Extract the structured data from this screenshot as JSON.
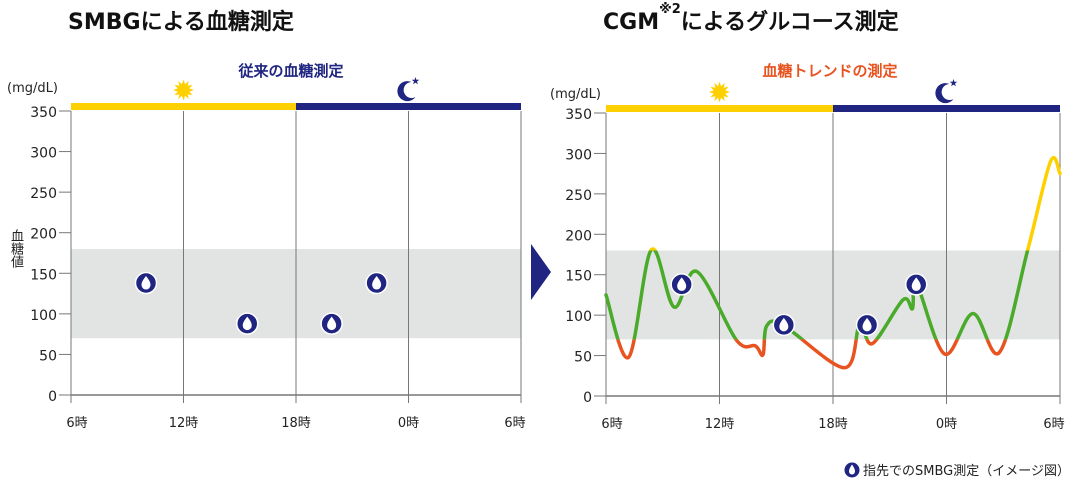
{
  "titles": {
    "left": "SMBGによる血糖測定",
    "right_main": "CGM",
    "right_sup": "※2",
    "right_rest": "によるグルコース測定"
  },
  "legend": {
    "label": "指先でのSMBG測定（イメージ図）",
    "icon": "blood-drop-icon"
  },
  "colors": {
    "navy": "#1f2580",
    "yellow": "#ffd000",
    "red": "#e8531f",
    "green": "#4aaa2a",
    "band": "#e2e3e3",
    "grid": "#777777"
  },
  "chart_data": [
    {
      "type": "scatter",
      "title": "SMBGによる血糖測定",
      "subtitle": "従来の血糖測定",
      "unit": "(mg/dL)",
      "ylabel": "血糖値",
      "ylim": [
        0,
        350
      ],
      "yticks": [
        "0",
        "50",
        "100",
        "150",
        "200",
        "250",
        "300",
        "350"
      ],
      "xlim": [
        6,
        30
      ],
      "xticks": [
        6,
        12,
        18,
        24,
        30
      ],
      "xtick_labels": [
        "6時",
        "12時",
        "18時",
        "0時",
        "6時"
      ],
      "target_range": [
        70,
        180
      ],
      "day_period": [
        6,
        18
      ],
      "night_period": [
        18,
        30
      ],
      "day_icon": "sun-icon",
      "night_icon": "moon-star-icon",
      "smbg_points": [
        [
          10.0,
          138
        ],
        [
          15.4,
          88
        ],
        [
          19.9,
          88
        ],
        [
          22.3,
          138
        ]
      ]
    },
    {
      "type": "line",
      "title": "CGM※2によるグルコース測定",
      "subtitle": "血糖トレンドの測定",
      "unit": "(mg/dL)",
      "ylabel": "",
      "ylim": [
        0,
        350
      ],
      "yticks": [
        "0",
        "50",
        "100",
        "150",
        "200",
        "250",
        "300",
        "350"
      ],
      "xlim": [
        6,
        30
      ],
      "xticks": [
        6,
        12,
        18,
        24,
        30
      ],
      "xtick_labels": [
        "6時",
        "12時",
        "18時",
        "0時",
        "6時"
      ],
      "target_range": [
        70,
        180
      ],
      "day_period": [
        6,
        18
      ],
      "night_period": [
        18,
        30
      ],
      "day_icon": "sun-icon",
      "night_icon": "moon-star-icon",
      "series": [
        {
          "name": "glucose",
          "x": [
            6.0,
            7.2,
            8.4,
            9.6,
            10.8,
            12.9,
            13.9,
            14.3,
            14.5,
            15.4,
            18.6,
            19.4,
            20.1,
            21.7,
            22.2,
            22.4,
            23.9,
            25.4,
            26.8,
            28.3,
            29.5,
            30.0
          ],
          "y": [
            125,
            48,
            181,
            110,
            154,
            69,
            62,
            51,
            87,
            87,
            35,
            87,
            65,
            119,
            108,
            140,
            52,
            102,
            54,
            181,
            290,
            275
          ]
        }
      ],
      "smbg_points": [
        [
          10.0,
          138
        ],
        [
          15.4,
          88
        ],
        [
          19.8,
          88
        ],
        [
          22.4,
          138
        ]
      ]
    }
  ]
}
